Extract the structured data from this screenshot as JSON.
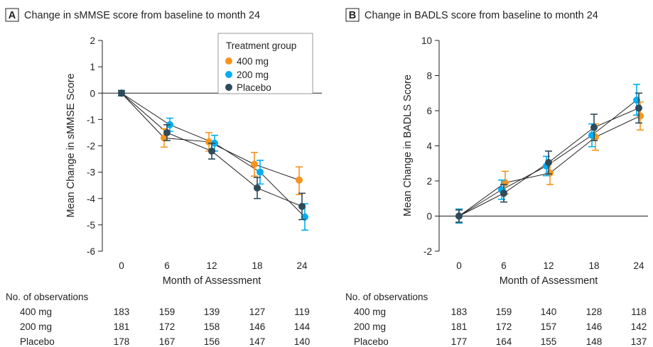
{
  "colors": {
    "400 mg": "#f7941d",
    "200 mg": "#00aeef",
    "Placebo": "#2d4b5a",
    "axis": "#231f20"
  },
  "chart_data": [
    {
      "type": "line",
      "panel_letter": "A",
      "title": "Change in sMMSE score from baseline to month 24",
      "xlabel": "Month of Assessment",
      "ylabel": "Mean Change in sMMSE Score",
      "x": [
        0,
        6,
        12,
        18,
        24
      ],
      "xticks": [
        "0",
        "6",
        "12",
        "18",
        "24"
      ],
      "ylim": [
        -6,
        2
      ],
      "yticks": [
        -6,
        -5,
        -4,
        -3,
        -2,
        -1,
        0,
        1,
        2
      ],
      "ytick_labels": [
        "-6",
        "-5",
        "-4",
        "-3",
        "-2",
        "-1",
        "0",
        "1",
        "2"
      ],
      "reference_line": 0,
      "legend": {
        "title": "Treatment group",
        "placement": "top-right",
        "entries": [
          "400 mg",
          "200 mg",
          "Placebo"
        ]
      },
      "series": [
        {
          "name": "400 mg",
          "values": [
            0,
            -1.7,
            -1.85,
            -2.7,
            -3.3
          ],
          "lower": [
            -0.1,
            -2.05,
            -2.2,
            -3.15,
            -3.85
          ],
          "upper": [
            0.1,
            -1.35,
            -1.5,
            -2.25,
            -2.8
          ]
        },
        {
          "name": "200 mg",
          "values": [
            0,
            -1.2,
            -1.9,
            -3.0,
            -4.7
          ],
          "lower": [
            -0.1,
            -1.45,
            -2.2,
            -3.45,
            -5.2
          ],
          "upper": [
            0.1,
            -0.95,
            -1.6,
            -2.55,
            -4.2
          ]
        },
        {
          "name": "Placebo",
          "values": [
            0,
            -1.5,
            -2.2,
            -3.6,
            -4.3
          ],
          "lower": [
            -0.1,
            -1.8,
            -2.5,
            -4.0,
            -4.8
          ],
          "upper": [
            0.1,
            -1.2,
            -1.9,
            -3.2,
            -3.8
          ]
        }
      ],
      "table": {
        "header": "No. of observations",
        "rows": [
          {
            "label": "400 mg",
            "values": [
              "183",
              "159",
              "139",
              "127",
              "119"
            ]
          },
          {
            "label": "200 mg",
            "values": [
              "181",
              "172",
              "158",
              "146",
              "144"
            ]
          },
          {
            "label": "Placebo",
            "values": [
              "178",
              "167",
              "156",
              "147",
              "140"
            ]
          }
        ]
      }
    },
    {
      "type": "line",
      "panel_letter": "B",
      "title": "Change in BADLS score from baseline to month 24",
      "xlabel": "Month of Assessment",
      "ylabel": "Mean Change in BADLS Score",
      "x": [
        0,
        6,
        12,
        18,
        24
      ],
      "xticks": [
        "0",
        "6",
        "12",
        "18",
        "24"
      ],
      "ylim": [
        -2,
        10
      ],
      "yticks": [
        -2,
        0,
        2,
        4,
        6,
        8,
        10
      ],
      "ytick_labels": [
        "-2",
        "0",
        "2",
        "4",
        "6",
        "8",
        "10"
      ],
      "reference_line": 0,
      "series": [
        {
          "name": "400 mg",
          "values": [
            0,
            1.9,
            2.45,
            4.5,
            5.7
          ],
          "lower": [
            -0.4,
            1.25,
            1.8,
            3.75,
            4.9
          ],
          "upper": [
            0.4,
            2.55,
            3.1,
            5.25,
            6.5
          ]
        },
        {
          "name": "200 mg",
          "values": [
            0,
            1.5,
            2.85,
            4.6,
            6.6
          ],
          "lower": [
            -0.4,
            0.95,
            2.3,
            3.95,
            5.75
          ],
          "upper": [
            0.4,
            2.05,
            3.4,
            5.25,
            7.5
          ]
        },
        {
          "name": "Placebo",
          "values": [
            0,
            1.3,
            3.05,
            5.05,
            6.15
          ],
          "lower": [
            -0.35,
            0.8,
            2.4,
            4.3,
            5.3
          ],
          "upper": [
            0.35,
            1.8,
            3.7,
            5.8,
            7.0
          ]
        }
      ],
      "table": {
        "header": "No. of observations",
        "rows": [
          {
            "label": "400 mg",
            "values": [
              "183",
              "159",
              "140",
              "128",
              "118"
            ]
          },
          {
            "label": "200 mg",
            "values": [
              "181",
              "172",
              "157",
              "146",
              "142"
            ]
          },
          {
            "label": "Placebo",
            "values": [
              "177",
              "164",
              "155",
              "148",
              "137"
            ]
          }
        ]
      }
    }
  ]
}
